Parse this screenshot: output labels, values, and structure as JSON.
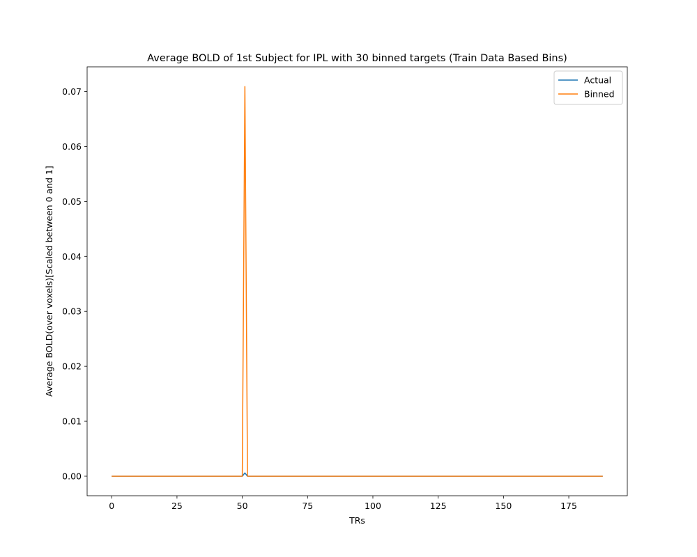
{
  "chart_data": {
    "type": "line",
    "title": "Average BOLD of 1st Subject for IPL with 30 binned targets (Train Data Based Bins)",
    "xlabel": "TRs",
    "ylabel": "Average BOLD(over voxels)[Scaled between 0 and 1]",
    "xlim": [
      -9.4,
      197.4
    ],
    "ylim": [
      -0.00355,
      0.0745
    ],
    "xticks": [
      0,
      25,
      50,
      75,
      100,
      125,
      150,
      175
    ],
    "xtick_labels": [
      "0",
      "25",
      "50",
      "75",
      "100",
      "125",
      "150",
      "175"
    ],
    "yticks": [
      0.0,
      0.01,
      0.02,
      0.03,
      0.04,
      0.05,
      0.06,
      0.07
    ],
    "ytick_labels": [
      "0.00",
      "0.01",
      "0.02",
      "0.03",
      "0.04",
      "0.05",
      "0.06",
      "0.07"
    ],
    "grid": false,
    "legend_position": "top-right",
    "series": [
      {
        "name": "Actual",
        "color": "#1f77b4",
        "x": [
          0,
          50,
          51,
          52,
          188
        ],
        "y": [
          0.0,
          0.0,
          0.0006,
          0.0,
          0.0
        ]
      },
      {
        "name": "Binned",
        "color": "#ff7f0e",
        "x": [
          0,
          50,
          51,
          52,
          188
        ],
        "y": [
          0.0,
          0.0,
          0.0709,
          0.0,
          0.0
        ]
      }
    ]
  }
}
